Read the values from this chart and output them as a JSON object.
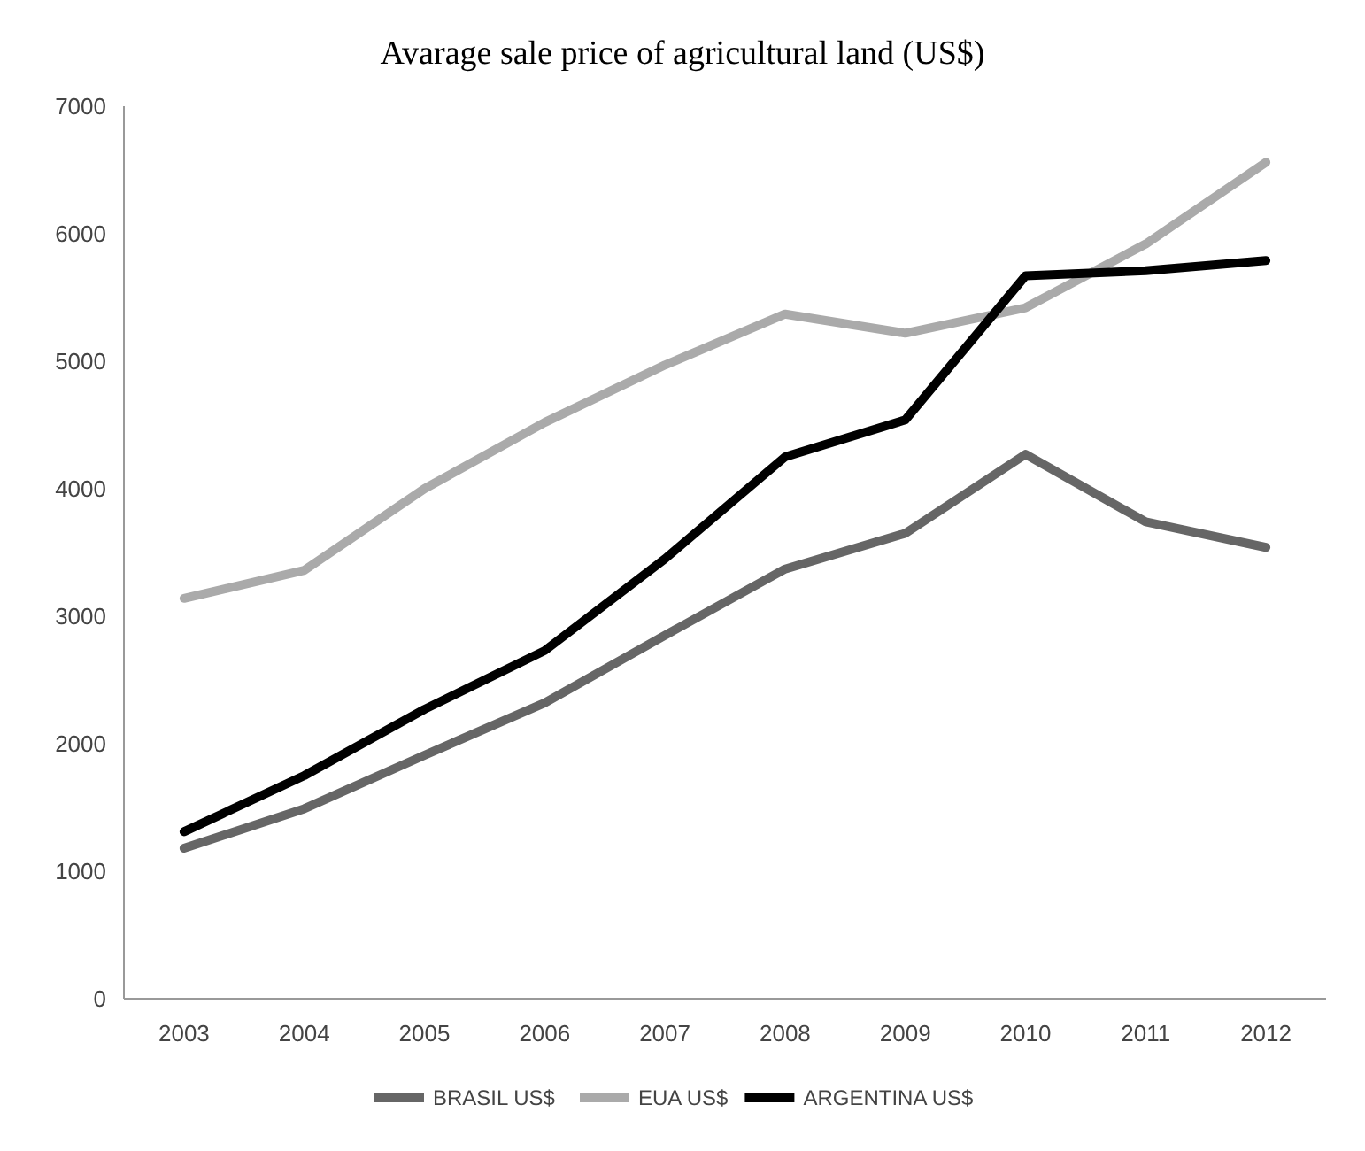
{
  "chart_data": {
    "type": "line",
    "title": "Avarage sale price of agricultural land (US$)",
    "categories": [
      "2003",
      "2004",
      "2005",
      "2006",
      "2007",
      "2008",
      "2009",
      "2010",
      "2011",
      "2012"
    ],
    "series": [
      {
        "name": "BRASIL US$",
        "color": "#666666",
        "values": [
          1180,
          1490,
          1910,
          2320,
          2850,
          3370,
          3650,
          4270,
          3740,
          3540
        ]
      },
      {
        "name": "EUA US$",
        "color": "#aaaaaa",
        "values": [
          3140,
          3360,
          4000,
          4520,
          4970,
          5370,
          5220,
          5420,
          5920,
          6560
        ]
      },
      {
        "name": "ARGENTINA US$",
        "color": "#000000",
        "values": [
          1310,
          1750,
          2270,
          2730,
          3450,
          4250,
          4540,
          5670,
          5710,
          5790
        ]
      }
    ],
    "ylim": [
      0,
      7000
    ],
    "yticks": [
      0,
      1000,
      2000,
      3000,
      4000,
      5000,
      6000,
      7000
    ],
    "grid": false,
    "legend": "bottom",
    "marker": "none",
    "line_style": "solid"
  }
}
